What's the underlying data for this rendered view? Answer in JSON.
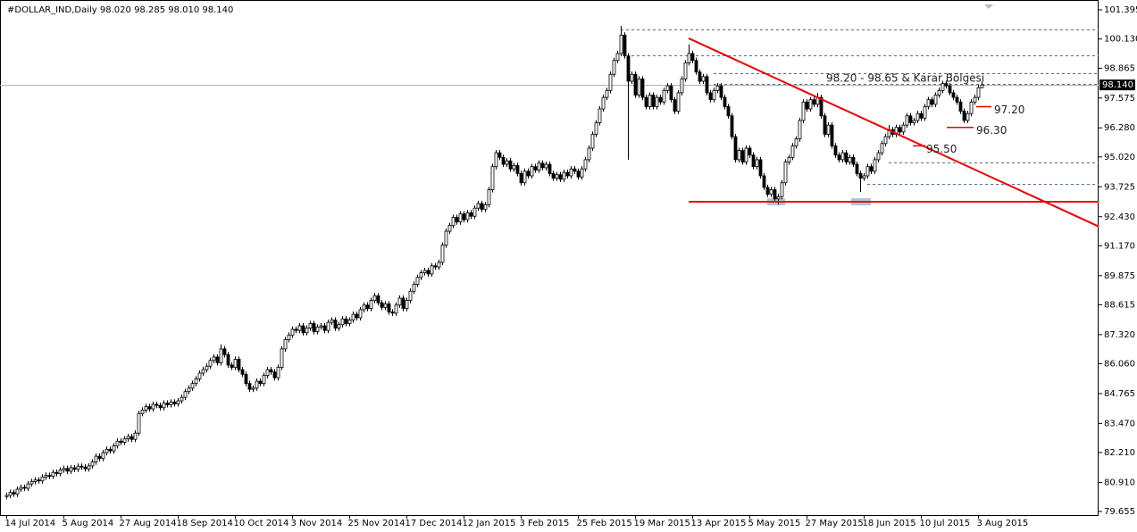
{
  "chart_data": {
    "type": "candlestick",
    "title": "#DOLLAR_IND,Daily  98.020 98.285 98.010 98.140",
    "color_up": "#ffffff",
    "color_down": "#000000",
    "outline": "#000000",
    "ylim": [
      79.5,
      101.666
    ],
    "yticks": [
      {
        "value": 101.395,
        "label": "101.395"
      },
      {
        "value": 100.13,
        "label": "100.130"
      },
      98.865,
      97.575,
      {
        "value": 96.28,
        "label": "96.280"
      },
      {
        "value": 95.02,
        "label": "95.020"
      },
      93.725,
      {
        "value": 92.43,
        "label": "92.430"
      },
      {
        "value": 91.17,
        "label": "91.170"
      },
      89.875,
      88.615,
      {
        "value": 87.32,
        "label": "87.320"
      },
      {
        "value": 86.06,
        "label": "86.060"
      },
      84.765,
      {
        "value": 83.47,
        "label": "83.470"
      },
      {
        "value": 82.21,
        "label": "82.210"
      },
      {
        "value": 80.91,
        "label": "80.910"
      },
      79.655
    ],
    "xticks": [
      {
        "value": 0,
        "label": "14 Jul 2014"
      },
      {
        "value": 16,
        "label": "5 Aug 2014"
      },
      {
        "value": 32,
        "label": "27 Aug 2014"
      },
      {
        "value": 48,
        "label": "18 Sep 2014"
      },
      {
        "value": 64,
        "label": "10 Oct 2014"
      },
      {
        "value": 80,
        "label": "3 Nov 2014"
      },
      {
        "value": 96,
        "label": "25 Nov 2014"
      },
      {
        "value": 112,
        "label": "17 Dec 2014"
      },
      {
        "value": 128,
        "label": "12 Jan 2015"
      },
      {
        "value": 144,
        "label": "3 Feb 2015"
      },
      {
        "value": 160,
        "label": "25 Feb 2015"
      },
      {
        "value": 176,
        "label": "19 Mar 2015"
      },
      {
        "value": 192,
        "label": "13 Apr 2015"
      },
      {
        "value": 208,
        "label": "5 May 2015"
      },
      {
        "value": 224,
        "label": "27 May 2015"
      },
      {
        "value": 240,
        "label": "18 Jun 2015"
      },
      {
        "value": 256,
        "label": "10 Jul 2015"
      },
      {
        "value": 272,
        "label": "3 Aug 2015"
      }
    ],
    "open": [
      80.3,
      80.35,
      80.48,
      80.41,
      80.62,
      80.7,
      80.66,
      80.85,
      80.95,
      81.02,
      80.98,
      81.15,
      81.22,
      81.18,
      81.35,
      81.3,
      81.45,
      81.52,
      81.4,
      81.55,
      81.48,
      81.62,
      81.58,
      81.5,
      81.63,
      81.8,
      82.05,
      81.95,
      82.2,
      82.35,
      82.28,
      82.5,
      82.7,
      82.65,
      82.8,
      82.9,
      82.78,
      83.05,
      83.9,
      84.05,
      84.2,
      84.1,
      84.3,
      84.25,
      84.15,
      84.35,
      84.28,
      84.4,
      84.32,
      84.45,
      84.6,
      84.85,
      85.0,
      85.2,
      85.4,
      85.65,
      85.8,
      85.95,
      86.2,
      86.35,
      86.1,
      86.7,
      86.45,
      86.0,
      85.9,
      86.25,
      85.8,
      85.6,
      85.2,
      84.95,
      85.0,
      85.3,
      85.2,
      85.55,
      85.8,
      85.7,
      85.45,
      85.9,
      86.7,
      87.1,
      87.3,
      87.55,
      87.5,
      87.7,
      87.4,
      87.6,
      87.8,
      87.45,
      87.65,
      87.7,
      87.5,
      87.85,
      87.95,
      87.6,
      87.75,
      88.0,
      87.8,
      87.95,
      88.2,
      88.05,
      88.4,
      88.6,
      88.45,
      88.8,
      89.0,
      88.7,
      88.5,
      88.65,
      88.3,
      88.25,
      88.6,
      88.9,
      88.45,
      88.8,
      89.2,
      89.5,
      89.8,
      90.0,
      90.1,
      89.95,
      90.3,
      90.25,
      90.45,
      91.2,
      91.8,
      92.05,
      92.4,
      92.2,
      92.55,
      92.3,
      92.6,
      92.45,
      92.8,
      93.0,
      92.75,
      92.95,
      93.6,
      94.6,
      95.2,
      95.0,
      94.7,
      94.85,
      94.5,
      94.65,
      94.3,
      93.9,
      94.4,
      94.2,
      94.6,
      94.45,
      94.75,
      94.55,
      94.7,
      94.3,
      94.1,
      94.25,
      94.05,
      94.35,
      94.2,
      94.5,
      94.4,
      94.15,
      94.5,
      94.9,
      95.4,
      96.0,
      96.5,
      97.1,
      97.6,
      97.9,
      98.6,
      99.2,
      99.5,
      100.3,
      99.4,
      98.3,
      98.6,
      97.7,
      98.4,
      97.6,
      97.2,
      97.7,
      97.2,
      97.6,
      97.4,
      97.9,
      98.1,
      97.5,
      97.0,
      97.8,
      98.4,
      99.1,
      99.5,
      99.2,
      98.7,
      98.3,
      98.5,
      97.8,
      97.5,
      97.9,
      98.1,
      97.6,
      97.2,
      96.8,
      95.9,
      94.9,
      95.3,
      94.8,
      95.4,
      95.1,
      94.6,
      94.9,
      94.2,
      93.7,
      93.4,
      93.6,
      93.2,
      93.3,
      93.9,
      94.8,
      95.0,
      95.5,
      95.8,
      96.6,
      97.4,
      97.1,
      97.5,
      97.3,
      97.6,
      96.8,
      96.0,
      96.4,
      95.5,
      95.1,
      94.9,
      95.2,
      94.8,
      95.0,
      94.7,
      94.3,
      94.1,
      94.2,
      94.6,
      94.4,
      94.9,
      95.2,
      95.6,
      95.9,
      96.2,
      96.0,
      96.3,
      96.1,
      96.4,
      96.8,
      96.5,
      96.6,
      96.9,
      96.7,
      97.2,
      97.5,
      97.3,
      97.7,
      97.9,
      98.2,
      98.1,
      97.8,
      97.6,
      97.4,
      97.0,
      96.6,
      96.9,
      97.4,
      97.6,
      98.02
    ],
    "high": [
      80.47,
      80.6,
      80.6,
      80.74,
      80.82,
      80.82,
      80.97,
      81.07,
      81.14,
      81.14,
      81.27,
      81.34,
      81.34,
      81.47,
      81.47,
      81.57,
      81.64,
      81.64,
      81.67,
      81.67,
      81.74,
      81.74,
      81.7,
      81.75,
      81.92,
      82.17,
      82.17,
      82.32,
      82.47,
      82.47,
      82.62,
      82.82,
      82.82,
      82.92,
      83.02,
      83.02,
      83.17,
      84.02,
      84.17,
      84.32,
      84.32,
      84.42,
      84.42,
      84.37,
      84.47,
      84.47,
      84.52,
      84.52,
      84.57,
      84.72,
      84.97,
      85.12,
      85.32,
      85.52,
      85.77,
      85.92,
      86.07,
      86.32,
      86.47,
      86.47,
      86.9,
      86.82,
      86.57,
      86.12,
      86.37,
      86.37,
      85.92,
      85.72,
      85.32,
      85.12,
      85.42,
      85.42,
      85.67,
      85.92,
      85.92,
      85.82,
      86.02,
      86.82,
      87.22,
      87.42,
      87.67,
      87.67,
      87.82,
      87.82,
      87.72,
      87.92,
      87.92,
      87.77,
      87.82,
      87.82,
      87.97,
      88.07,
      88.07,
      87.87,
      88.12,
      88.12,
      88.07,
      88.32,
      88.32,
      88.52,
      88.72,
      88.72,
      88.92,
      89.12,
      89.12,
      88.82,
      88.77,
      88.77,
      88.42,
      88.72,
      89.02,
      89.02,
      88.92,
      89.32,
      89.62,
      89.92,
      90.12,
      90.22,
      90.22,
      90.42,
      90.42,
      90.57,
      91.32,
      91.92,
      92.17,
      92.52,
      92.52,
      92.67,
      92.67,
      92.72,
      92.72,
      92.92,
      93.12,
      93.12,
      93.07,
      93.72,
      94.72,
      95.32,
      95.32,
      95.12,
      94.97,
      94.97,
      94.77,
      94.77,
      94.42,
      94.52,
      94.52,
      94.72,
      94.72,
      94.87,
      94.87,
      94.82,
      94.82,
      94.42,
      94.37,
      94.37,
      94.47,
      94.47,
      94.62,
      94.62,
      94.52,
      94.62,
      95.02,
      95.52,
      96.12,
      96.62,
      97.22,
      97.72,
      98.02,
      98.72,
      99.32,
      99.62,
      100.7,
      100.42,
      99.52,
      98.72,
      98.72,
      98.52,
      98.52,
      97.72,
      97.82,
      97.82,
      97.72,
      97.72,
      98.02,
      98.22,
      98.22,
      97.62,
      97.92,
      98.52,
      99.22,
      99.9,
      99.62,
      99.32,
      98.82,
      98.62,
      98.62,
      97.92,
      98.02,
      98.22,
      98.22,
      97.72,
      97.32,
      96.92,
      96.02,
      95.42,
      95.42,
      95.52,
      95.52,
      95.22,
      95.02,
      95.02,
      94.32,
      93.82,
      93.72,
      93.72,
      93.42,
      94.02,
      94.92,
      95.12,
      95.62,
      95.92,
      96.72,
      97.52,
      97.52,
      97.62,
      97.62,
      97.8,
      97.72,
      96.92,
      96.52,
      96.52,
      95.62,
      95.22,
      95.32,
      95.32,
      95.12,
      95.12,
      94.82,
      94.42,
      94.32,
      94.72,
      94.72,
      95.02,
      95.32,
      95.72,
      96.02,
      96.4,
      96.32,
      96.42,
      96.42,
      96.52,
      96.92,
      96.92,
      96.72,
      97.02,
      97.02,
      97.32,
      97.62,
      97.62,
      97.82,
      98.02,
      98.32,
      98.32,
      98.22,
      97.92,
      97.72,
      97.52,
      97.12,
      97.02,
      97.52,
      97.72,
      98.14,
      98.285
    ],
    "low": [
      80.18,
      80.23,
      80.29,
      80.29,
      80.5,
      80.54,
      80.54,
      80.73,
      80.83,
      80.86,
      80.86,
      81.03,
      81.06,
      81.06,
      81.18,
      81.18,
      81.33,
      81.28,
      81.28,
      81.36,
      81.36,
      81.46,
      81.38,
      81.38,
      81.51,
      81.68,
      81.83,
      81.83,
      82.08,
      82.16,
      82.16,
      82.38,
      82.53,
      82.53,
      82.68,
      82.66,
      82.66,
      82.93,
      83.78,
      83.93,
      83.98,
      83.98,
      84.13,
      84.03,
      84.03,
      84.16,
      84.16,
      84.2,
      84.2,
      84.33,
      84.48,
      84.73,
      84.88,
      85.08,
      85.28,
      85.53,
      85.68,
      85.83,
      86.08,
      85.98,
      85.98,
      86.33,
      85.88,
      85.78,
      85.78,
      85.68,
      85.48,
      85.08,
      84.83,
      84.83,
      84.88,
      85.08,
      85.08,
      85.43,
      85.58,
      85.33,
      85.33,
      85.78,
      86.58,
      86.98,
      87.18,
      87.38,
      87.38,
      87.28,
      87.28,
      87.48,
      87.33,
      87.33,
      87.53,
      87.38,
      87.38,
      87.73,
      87.48,
      87.48,
      87.63,
      87.68,
      87.68,
      87.83,
      87.93,
      87.93,
      88.28,
      88.33,
      88.33,
      88.68,
      88.58,
      88.38,
      88.38,
      88.18,
      88.13,
      88.13,
      88.48,
      88.33,
      88.33,
      88.68,
      89.08,
      89.38,
      89.68,
      89.88,
      89.83,
      89.83,
      90.13,
      90.13,
      90.33,
      91.08,
      91.68,
      91.93,
      92.08,
      92.08,
      92.18,
      92.18,
      92.33,
      92.33,
      92.68,
      92.63,
      92.63,
      92.83,
      93.48,
      94.48,
      94.88,
      94.58,
      94.58,
      94.38,
      94.38,
      94.18,
      93.78,
      93.78,
      94.08,
      94.08,
      94.33,
      94.33,
      94.43,
      94.43,
      94.18,
      93.98,
      93.98,
      93.93,
      93.93,
      94.08,
      94.08,
      94.28,
      94.03,
      94.03,
      94.38,
      94.78,
      95.28,
      95.88,
      96.38,
      96.98,
      97.48,
      97.78,
      98.48,
      99.08,
      99.38,
      99.28,
      94.9,
      98.18,
      97.58,
      97.58,
      97.48,
      97.08,
      97.08,
      97.08,
      97.08,
      97.28,
      97.28,
      97.78,
      97.38,
      96.88,
      96.88,
      97.68,
      98.28,
      98.98,
      99.08,
      98.58,
      98.18,
      98.18,
      97.68,
      97.38,
      97.38,
      97.78,
      97.48,
      97.08,
      96.68,
      95.78,
      94.78,
      94.78,
      94.68,
      94.68,
      94.98,
      94.48,
      94.48,
      94.08,
      93.58,
      93.28,
      93.28,
      93.08,
      92.95,
      93.18,
      93.78,
      94.68,
      94.88,
      95.38,
      95.68,
      96.48,
      96.98,
      96.98,
      97.18,
      97.18,
      96.68,
      95.88,
      95.88,
      95.38,
      94.98,
      94.78,
      94.78,
      94.68,
      94.68,
      94.58,
      94.18,
      93.5,
      93.98,
      94.08,
      94.28,
      94.28,
      94.78,
      95.08,
      95.48,
      95.78,
      95.88,
      95.88,
      95.98,
      95.98,
      96.28,
      96.38,
      96.38,
      96.48,
      96.58,
      96.58,
      97.08,
      97.18,
      97.18,
      97.58,
      97.78,
      97.98,
      97.68,
      97.48,
      97.28,
      96.88,
      96.48,
      96.48,
      96.78,
      97.28,
      97.48,
      98.01
    ],
    "close": [
      80.35,
      80.48,
      80.41,
      80.62,
      80.7,
      80.66,
      80.85,
      80.95,
      81.02,
      80.98,
      81.15,
      81.22,
      81.18,
      81.35,
      81.3,
      81.45,
      81.52,
      81.4,
      81.55,
      81.48,
      81.62,
      81.58,
      81.5,
      81.63,
      81.8,
      82.05,
      81.95,
      82.2,
      82.35,
      82.28,
      82.5,
      82.7,
      82.65,
      82.8,
      82.9,
      82.78,
      83.05,
      83.9,
      84.05,
      84.2,
      84.1,
      84.3,
      84.25,
      84.15,
      84.35,
      84.28,
      84.4,
      84.32,
      84.45,
      84.6,
      84.85,
      85.0,
      85.2,
      85.4,
      85.65,
      85.8,
      85.95,
      86.2,
      86.35,
      86.1,
      86.7,
      86.45,
      86.0,
      85.9,
      86.25,
      85.8,
      85.6,
      85.2,
      84.95,
      85.0,
      85.3,
      85.2,
      85.55,
      85.8,
      85.7,
      85.45,
      85.9,
      86.7,
      87.1,
      87.3,
      87.55,
      87.5,
      87.7,
      87.4,
      87.6,
      87.8,
      87.45,
      87.65,
      87.7,
      87.5,
      87.85,
      87.95,
      87.6,
      87.75,
      88.0,
      87.8,
      87.95,
      88.2,
      88.05,
      88.4,
      88.6,
      88.45,
      88.8,
      89.0,
      88.7,
      88.5,
      88.65,
      88.3,
      88.25,
      88.6,
      88.9,
      88.45,
      88.8,
      89.2,
      89.5,
      89.8,
      90.0,
      90.1,
      89.95,
      90.3,
      90.25,
      90.45,
      91.2,
      91.8,
      92.05,
      92.4,
      92.2,
      92.55,
      92.3,
      92.6,
      92.45,
      92.8,
      93.0,
      92.75,
      92.95,
      93.6,
      94.6,
      95.2,
      95.0,
      94.7,
      94.85,
      94.5,
      94.65,
      94.3,
      93.9,
      94.4,
      94.2,
      94.6,
      94.45,
      94.75,
      94.55,
      94.7,
      94.3,
      94.1,
      94.25,
      94.05,
      94.35,
      94.2,
      94.5,
      94.4,
      94.15,
      94.5,
      94.9,
      95.4,
      96.0,
      96.5,
      97.1,
      97.6,
      97.9,
      98.6,
      99.2,
      99.5,
      100.3,
      99.4,
      98.3,
      98.6,
      97.7,
      98.4,
      97.6,
      97.2,
      97.7,
      97.2,
      97.6,
      97.4,
      97.9,
      98.1,
      97.5,
      97.0,
      97.8,
      98.4,
      99.1,
      99.5,
      99.2,
      98.7,
      98.3,
      98.5,
      97.8,
      97.5,
      97.9,
      98.1,
      97.6,
      97.2,
      96.8,
      95.9,
      94.9,
      95.3,
      94.8,
      95.4,
      95.1,
      94.6,
      94.9,
      94.2,
      93.7,
      93.4,
      93.6,
      93.2,
      93.3,
      93.9,
      94.8,
      95.0,
      95.5,
      95.8,
      96.6,
      97.4,
      97.1,
      97.5,
      97.3,
      97.6,
      96.8,
      96.0,
      96.4,
      95.5,
      95.1,
      94.9,
      95.2,
      94.8,
      95.0,
      94.7,
      94.3,
      94.1,
      94.2,
      94.6,
      94.4,
      94.9,
      95.2,
      95.6,
      95.9,
      96.2,
      96.0,
      96.3,
      96.1,
      96.4,
      96.8,
      96.5,
      96.6,
      96.9,
      96.7,
      97.2,
      97.5,
      97.3,
      97.7,
      97.9,
      98.2,
      98.1,
      97.8,
      97.6,
      97.4,
      97.0,
      96.6,
      96.9,
      97.4,
      97.6,
      98.02,
      98.14
    ],
    "last_price": {
      "value": 98.14,
      "label": "98.140"
    },
    "levels": [
      {
        "value": 100.54,
        "from": 172
      },
      {
        "value": 99.42,
        "from": 175
      },
      {
        "value": 98.65,
        "from": 198
      },
      {
        "value": 98.2,
        "from": 198
      },
      {
        "value": 94.78,
        "from": 247
      },
      {
        "value": 93.85,
        "from": 241
      }
    ],
    "trendline": {
      "color": "#ee0000",
      "x": [
        191,
        306
      ],
      "y": [
        100.16,
        91.99
      ]
    },
    "support": {
      "color": "#ee0000",
      "x": [
        191,
        306
      ],
      "y": [
        93.08,
        93.08
      ]
    },
    "highlights": [
      {
        "x": [
          213,
          218
        ],
        "y": [
          92.92,
          93.23
        ]
      },
      {
        "x": [
          236.5,
          242
        ],
        "y": [
          92.92,
          93.23
        ]
      }
    ],
    "zone_label": "98.20 - 98.65 &  Karar Bölgesi",
    "price_labels": [
      {
        "value": 97.2,
        "label": "97.20"
      },
      {
        "value": 96.3,
        "label": "96.30"
      },
      {
        "value": 95.5,
        "label": "95.50"
      }
    ]
  }
}
